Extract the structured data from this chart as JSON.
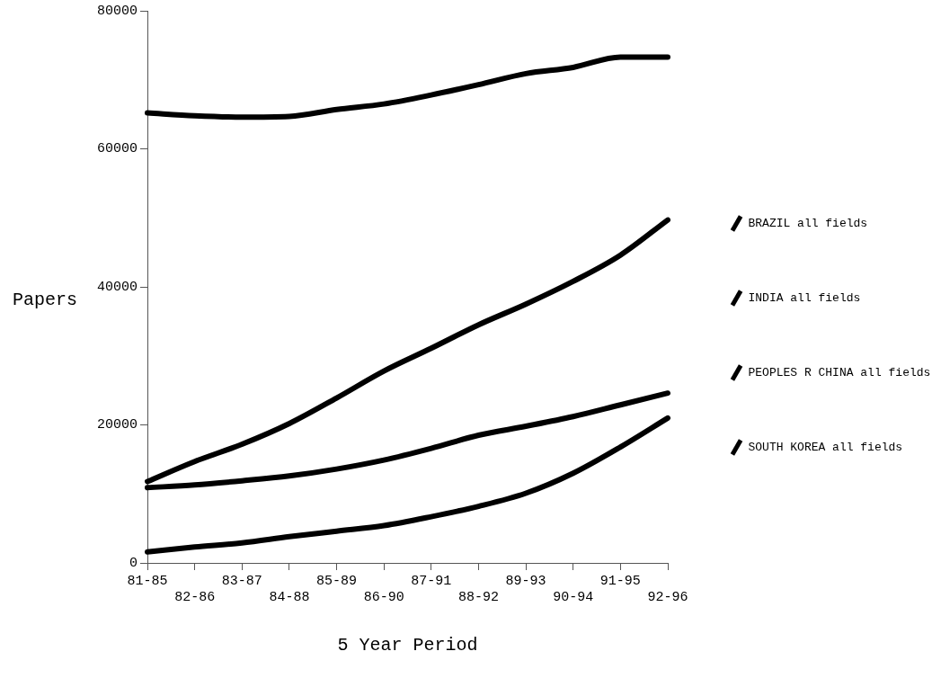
{
  "chart_data": {
    "type": "line",
    "xlabel": "5 Year Period",
    "ylabel": "Papers",
    "categories": [
      "81-85",
      "82-86",
      "83-87",
      "84-88",
      "85-89",
      "86-90",
      "87-91",
      "88-92",
      "89-93",
      "90-94",
      "91-95",
      "92-96"
    ],
    "ylim": [
      0,
      80000
    ],
    "yticks": [
      0,
      20000,
      40000,
      60000,
      80000
    ],
    "grid": false,
    "legend": "right",
    "marker": "none",
    "line_style": "solid",
    "series": [
      {
        "name": "BRAZIL all fields",
        "color": "#000000",
        "values": [
          10900,
          11300,
          11900,
          12600,
          13600,
          14900,
          16600,
          18500,
          19800,
          21200,
          22900,
          24600
        ]
      },
      {
        "name": "INDIA all fields",
        "color": "#000000",
        "values": [
          65200,
          64800,
          64600,
          64700,
          65700,
          66500,
          67800,
          69300,
          70900,
          71800,
          73300,
          73300
        ]
      },
      {
        "name": "PEOPLES R CHINA all fields",
        "color": "#000000",
        "values": [
          11800,
          14700,
          17200,
          20200,
          23900,
          27800,
          31100,
          34500,
          37500,
          40800,
          44600,
          49700
        ]
      },
      {
        "name": "SOUTH KOREA all fields",
        "color": "#000000",
        "values": [
          1600,
          2300,
          2900,
          3800,
          4600,
          5400,
          6700,
          8200,
          10100,
          13000,
          16800,
          21000
        ]
      }
    ]
  }
}
